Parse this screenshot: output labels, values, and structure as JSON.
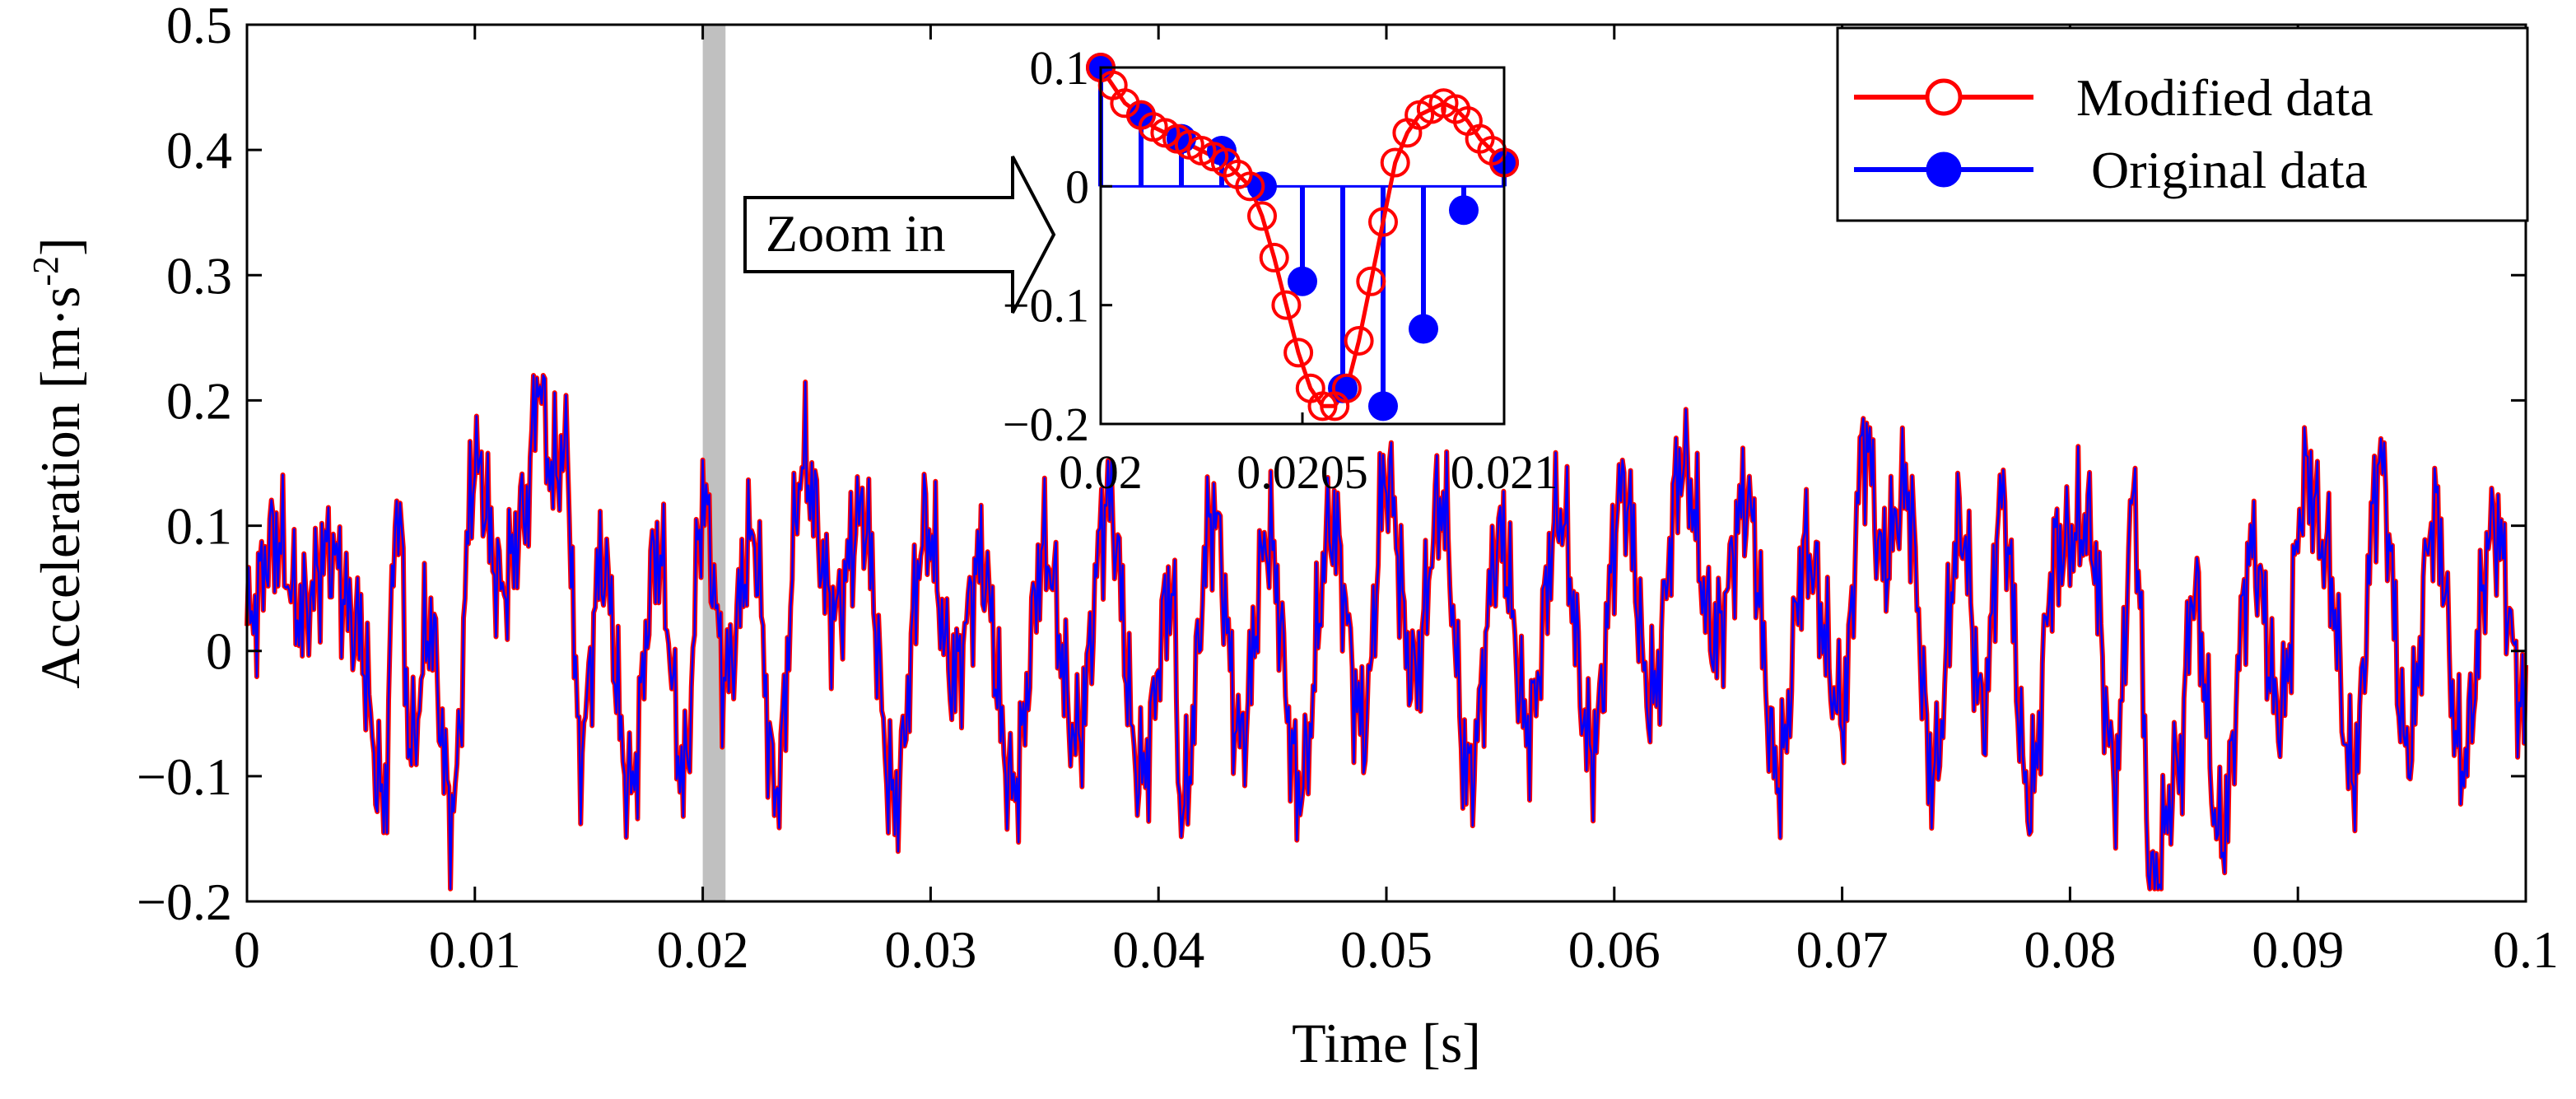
{
  "chart_data": {
    "type": "line",
    "xlabel": "Time [s]",
    "ylabel": "Acceleration [m·s",
    "ylabel_sup": "-2",
    "ylabel_close": "]",
    "xlim": [
      0,
      0.1
    ],
    "ylim": [
      -0.2,
      0.5
    ],
    "x_tick_labels": [
      "0",
      "0.01",
      "0.02",
      "0.03",
      "0.04",
      "0.05",
      "0.06",
      "0.07",
      "0.08",
      "0.09",
      "0.1"
    ],
    "y_tick_labels": [
      "−0.2",
      "−0.1",
      "0",
      "0.1",
      "0.2",
      "0.3",
      "0.4",
      "0.5"
    ],
    "highlight_band": [
      0.02,
      0.021
    ],
    "series": [
      {
        "name": "Modified data",
        "color": "#ff0000",
        "marker": "open-circle"
      },
      {
        "name": "Original data",
        "color": "#0000ff",
        "marker": "filled-circle"
      }
    ],
    "main_points_x": [
      0.0,
      0.0012,
      0.0024,
      0.0036,
      0.0048,
      0.006,
      0.0066,
      0.0072,
      0.008,
      0.009,
      0.01,
      0.0112,
      0.0122,
      0.0128,
      0.0134,
      0.014,
      0.0146,
      0.0156,
      0.0168,
      0.018,
      0.0192,
      0.02,
      0.021,
      0.0222,
      0.0232,
      0.0244,
      0.0258,
      0.027,
      0.0284,
      0.0298,
      0.031,
      0.0322,
      0.0336,
      0.035,
      0.0364,
      0.0378,
      0.0392,
      0.0406,
      0.041,
      0.0424,
      0.0436,
      0.0448,
      0.0462,
      0.0476,
      0.049,
      0.05,
      0.0512,
      0.0524,
      0.0536,
      0.055,
      0.0562,
      0.0576,
      0.059,
      0.0604,
      0.0616,
      0.063,
      0.0644,
      0.0658,
      0.0672,
      0.0684,
      0.07,
      0.071,
      0.0718,
      0.0728,
      0.074,
      0.0752,
      0.0762,
      0.077,
      0.0782,
      0.0794,
      0.0808,
      0.082,
      0.0828,
      0.0836,
      0.0848,
      0.0854,
      0.0866,
      0.088,
      0.0892,
      0.0904,
      0.0912,
      0.0924,
      0.0936,
      0.0948,
      0.096,
      0.0972,
      0.0986,
      0.1
    ],
    "main_points_y": [
      0.02,
      0.09,
      0.03,
      0.08,
      0.02,
      -0.12,
      0.12,
      -0.08,
      0.02,
      -0.13,
      0.15,
      0.05,
      0.11,
      0.22,
      0.14,
      0.16,
      -0.08,
      0.07,
      -0.11,
      0.08,
      -0.1,
      0.12,
      -0.02,
      0.09,
      -0.11,
      0.15,
      0.03,
      0.11,
      -0.12,
      0.1,
      -0.02,
      0.07,
      -0.11,
      0.08,
      -0.07,
      0.12,
      -0.1,
      0.05,
      -0.13,
      0.11,
      -0.07,
      0.09,
      -0.11,
      0.1,
      -0.06,
      0.14,
      -0.02,
      0.12,
      -0.1,
      0.09,
      -0.06,
      0.11,
      -0.08,
      0.13,
      -0.04,
      0.15,
      0.01,
      0.12,
      -0.1,
      0.08,
      -0.05,
      0.17,
      0.07,
      0.13,
      -0.1,
      0.1,
      -0.05,
      0.12,
      -0.12,
      0.08,
      0.1,
      -0.1,
      0.12,
      -0.19,
      -0.09,
      0.05,
      -0.15,
      0.08,
      -0.05,
      0.14,
      0.08,
      -0.1,
      0.15,
      -0.08,
      0.11,
      -0.09,
      0.1,
      -0.05
    ],
    "inset": {
      "xlim": [
        0.02,
        0.021
      ],
      "ylim": [
        -0.2,
        0.1
      ],
      "x_tick_labels": [
        "0.02",
        "0.0205",
        "0.021"
      ],
      "y_tick_labels": [
        "0.1",
        "0",
        "−0.1",
        "−0.2"
      ],
      "original_x": [
        0.02,
        0.0201,
        0.0202,
        0.0203,
        0.0204,
        0.0205,
        0.0206,
        0.0207,
        0.0208,
        0.0209,
        0.021
      ],
      "original_y": [
        0.1,
        0.06,
        0.04,
        0.03,
        0.0,
        -0.08,
        -0.17,
        -0.185,
        -0.12,
        -0.02,
        0.02
      ],
      "modified_x": [
        0.02,
        0.02003,
        0.02006,
        0.0201,
        0.02013,
        0.02016,
        0.02019,
        0.02022,
        0.02025,
        0.02028,
        0.02031,
        0.02034,
        0.02037,
        0.0204,
        0.02043,
        0.02046,
        0.02049,
        0.02052,
        0.02055,
        0.02058,
        0.02061,
        0.02064,
        0.02067,
        0.0207,
        0.02073,
        0.02076,
        0.02079,
        0.02082,
        0.02085,
        0.02088,
        0.02091,
        0.02094,
        0.02097,
        0.021
      ],
      "modified_y": [
        0.1,
        0.085,
        0.07,
        0.06,
        0.05,
        0.045,
        0.04,
        0.035,
        0.03,
        0.025,
        0.02,
        0.01,
        0.0,
        -0.025,
        -0.06,
        -0.1,
        -0.14,
        -0.17,
        -0.185,
        -0.185,
        -0.17,
        -0.13,
        -0.08,
        -0.03,
        0.02,
        0.045,
        0.06,
        0.065,
        0.07,
        0.065,
        0.055,
        0.04,
        0.03,
        0.02
      ]
    },
    "annotation": "Zoom in"
  }
}
